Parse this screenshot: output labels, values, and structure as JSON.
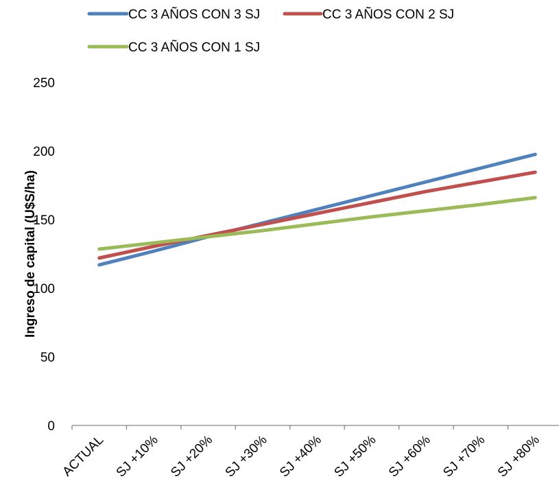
{
  "chart_data": {
    "type": "line",
    "title": "",
    "xlabel": "",
    "ylabel": "Ingreso de capital (U$S/ha)",
    "categories": [
      "ACTUAL",
      "SJ +10%",
      "SJ +20%",
      "SJ +30%",
      "SJ +40%",
      "SJ +50%",
      "SJ +60%",
      "SJ +70%",
      "SJ +80%"
    ],
    "ylim": [
      0,
      250
    ],
    "yticks": [
      "0",
      "50",
      "100",
      "150",
      "200",
      "250"
    ],
    "grid": false,
    "legend_position": "top",
    "series": [
      {
        "name": "CC 3 AÑOS CON 3 SJ",
        "color": "#4F81BD",
        "values": [
          117,
          127,
          137.5,
          147.5,
          157.5,
          167.5,
          177.5,
          187.5,
          197.5
        ]
      },
      {
        "name": "CC 3 AÑOS CON 2 SJ",
        "color": "#C0504D",
        "values": [
          122,
          130.5,
          138.5,
          146.5,
          154.5,
          162.5,
          170.5,
          177.5,
          184.5
        ]
      },
      {
        "name": "CC 3 AÑOS CON 1 SJ",
        "color": "#9BBB59",
        "values": [
          128.5,
          133,
          137.5,
          142,
          147,
          152,
          156.5,
          161,
          166
        ]
      }
    ]
  }
}
